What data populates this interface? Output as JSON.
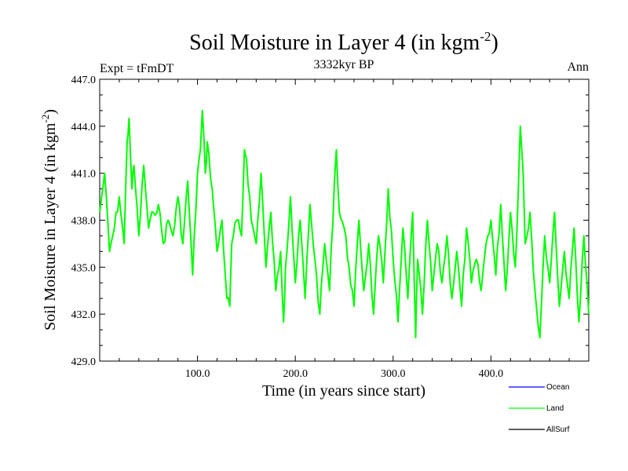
{
  "chart_data": {
    "type": "line",
    "title": "Soil Moisture in Layer 4 (in kgm",
    "title_sup": "-2",
    "title_close": ")",
    "subtitle_left": "Expt = tFmDT",
    "subtitle_center": "3332kyr BP",
    "subtitle_right": "Ann",
    "xlabel": "Time (in years since start)",
    "ylabel": "Soil Moisture in Layer 4 (in kgm",
    "ylabel_sup": "-2",
    "ylabel_close": ")",
    "xlim": [
      0,
      500
    ],
    "ylim": [
      429.0,
      447.0
    ],
    "x_ticks": [
      100,
      200,
      300,
      400
    ],
    "x_tick_labels": [
      "100.0",
      "200.0",
      "300.0",
      "400.0"
    ],
    "y_ticks": [
      429,
      432,
      435,
      438,
      441,
      444,
      447
    ],
    "y_tick_labels": [
      "429.0",
      "432.0",
      "435.0",
      "438.0",
      "441.0",
      "444.0",
      "447.0"
    ],
    "legend": [
      {
        "name": "Ocean",
        "color": "#0000ff"
      },
      {
        "name": "Land",
        "color": "#00ff00"
      },
      {
        "name": "AllSurf",
        "color": "#000000"
      }
    ],
    "series": [
      {
        "name": "Land",
        "color": "#00ff00",
        "x": [
          0,
          5,
          10,
          15,
          20,
          25,
          28,
          30,
          33,
          35,
          40,
          45,
          50,
          55,
          60,
          65,
          70,
          75,
          80,
          85,
          90,
          95,
          100,
          103,
          105,
          108,
          110,
          115,
          120,
          125,
          130,
          133,
          135,
          140,
          145,
          148,
          150,
          155,
          160,
          165,
          170,
          175,
          180,
          185,
          188,
          190,
          195,
          200,
          205,
          210,
          215,
          220,
          225,
          230,
          235,
          240,
          242,
          245,
          250,
          255,
          260,
          265,
          270,
          275,
          280,
          285,
          290,
          295,
          300,
          305,
          310,
          315,
          320,
          323,
          325,
          330,
          335,
          340,
          345,
          350,
          355,
          360,
          365,
          370,
          375,
          380,
          385,
          390,
          395,
          400,
          405,
          410,
          415,
          420,
          425,
          428,
          430,
          433,
          435,
          440,
          445,
          450,
          455,
          460,
          465,
          470,
          475,
          480,
          485,
          490,
          495,
          500
        ],
        "values": [
          438.5,
          441.0,
          436.0,
          437.5,
          439.5,
          436.5,
          443.0,
          444.5,
          440.0,
          441.5,
          437.0,
          441.5,
          437.5,
          438.5,
          439.0,
          436.5,
          438.0,
          437.0,
          439.5,
          436.5,
          440.5,
          434.5,
          441.0,
          442.5,
          445.0,
          441.0,
          443.0,
          440.0,
          436.0,
          438.0,
          433.0,
          432.5,
          436.5,
          438.0,
          437.0,
          442.5,
          442.0,
          438.0,
          436.5,
          441.0,
          435.0,
          438.5,
          433.5,
          436.0,
          431.5,
          435.0,
          439.5,
          434.0,
          438.0,
          433.0,
          439.0,
          435.5,
          432.0,
          436.5,
          433.5,
          440.5,
          442.5,
          438.5,
          437.5,
          435.0,
          432.5,
          438.0,
          433.5,
          436.5,
          432.0,
          437.0,
          434.0,
          440.0,
          435.5,
          431.5,
          437.5,
          433.0,
          438.5,
          430.5,
          435.5,
          432.0,
          438.0,
          433.5,
          436.5,
          434.0,
          437.0,
          433.0,
          436.0,
          432.5,
          437.5,
          434.0,
          435.5,
          433.5,
          436.5,
          438.0,
          434.5,
          439.0,
          433.5,
          438.5,
          435.0,
          440.0,
          444.0,
          441.0,
          436.5,
          438.5,
          433.5,
          430.5,
          437.0,
          434.0,
          438.5,
          432.5,
          436.0,
          433.0,
          437.5,
          431.5,
          437.0,
          432.0
        ]
      }
    ]
  }
}
